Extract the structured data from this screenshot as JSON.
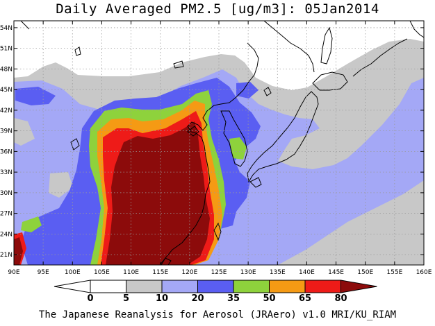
{
  "title": "Daily Averaged PM2.5 [ug/m3]: 05Jan2014",
  "footer": "The Japanese Reanalysis for Aerosol (JRAero) v1.0 MRI/KU_RIAM",
  "map": {
    "lon_range": [
      90,
      160
    ],
    "lat_range": [
      19.5,
      55
    ],
    "lon_ticks": [
      "90E",
      "95E",
      "100E",
      "105E",
      "110E",
      "115E",
      "120E",
      "125E",
      "130E",
      "135E",
      "140E",
      "145E",
      "150E",
      "155E",
      "160E"
    ],
    "lat_ticks": [
      {
        "lat": 21,
        "label": "21N"
      },
      {
        "lat": 24,
        "label": "24N"
      },
      {
        "lat": 27,
        "label": "27N"
      },
      {
        "lat": 30,
        "label": "30N"
      },
      {
        "lat": 33,
        "label": "33N"
      },
      {
        "lat": 36,
        "label": "36N"
      },
      {
        "lat": 39,
        "label": "39N"
      },
      {
        "lat": 42,
        "label": "42N"
      },
      {
        "lat": 45,
        "label": "45N"
      },
      {
        "lat": 48,
        "label": "48N"
      },
      {
        "lat": 51,
        "label": "51N"
      },
      {
        "lat": 54,
        "label": "54N"
      }
    ],
    "gridlines": true,
    "coastlines": true
  },
  "colorbar": {
    "levels": [
      "0",
      "5",
      "10",
      "20",
      "35",
      "50",
      "65",
      "80"
    ],
    "colors": [
      "#ffffff",
      "#c8c8c8",
      "#a4a8f6",
      "#5a5ef2",
      "#8ed23c",
      "#f59a14",
      "#ee1b18",
      "#8c0b0b"
    ],
    "low_end_color": "#ffffff",
    "high_end_color": "#8c0b0b"
  },
  "colors": {
    "white": "#ffffff",
    "gray": "#c8c8c8",
    "light_blue": "#a4a8f6",
    "blue": "#5a5ef2",
    "green": "#8ed23c",
    "orange": "#f59a14",
    "red": "#ee1b18",
    "dark_red": "#8c0b0b"
  }
}
